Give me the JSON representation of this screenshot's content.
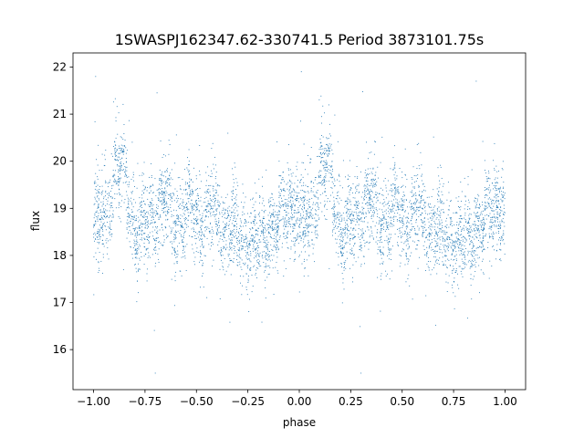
{
  "chart_data": {
    "type": "scatter",
    "title": "1SWASPJ162347.62-330741.5 Period 3873101.75s",
    "xlabel": "phase",
    "ylabel": "flux",
    "xlim": [
      -1.1,
      1.1
    ],
    "ylim": [
      15.15,
      22.3
    ],
    "xticks": [
      -1.0,
      -0.75,
      -0.5,
      -0.25,
      0.0,
      0.25,
      0.5,
      0.75,
      1.0
    ],
    "xtick_labels": [
      "−1.00",
      "−0.75",
      "−0.50",
      "−0.25",
      "0.00",
      "0.25",
      "0.50",
      "0.75",
      "1.00"
    ],
    "yticks": [
      16,
      17,
      18,
      19,
      20,
      21,
      22
    ],
    "ytick_labels": [
      "16",
      "17",
      "18",
      "19",
      "20",
      "21",
      "22"
    ],
    "grid": false,
    "legend": "none",
    "marker_color": "#1f77b4",
    "series": [
      {
        "phase_profile": [
          [
            0.0,
            18.7
          ],
          [
            0.04,
            18.6
          ],
          [
            0.08,
            19.3
          ],
          [
            0.11,
            19.9
          ],
          [
            0.15,
            19.6
          ],
          [
            0.19,
            18.9
          ],
          [
            0.23,
            18.4
          ],
          [
            0.27,
            18.6
          ],
          [
            0.31,
            19.1
          ],
          [
            0.35,
            19.0
          ],
          [
            0.39,
            18.7
          ],
          [
            0.43,
            18.8
          ],
          [
            0.47,
            18.9
          ],
          [
            0.5,
            18.9
          ],
          [
            0.54,
            18.7
          ],
          [
            0.58,
            18.9
          ],
          [
            0.62,
            18.6
          ],
          [
            0.66,
            18.7
          ],
          [
            0.7,
            18.3
          ],
          [
            0.74,
            18.4
          ],
          [
            0.78,
            18.2
          ],
          [
            0.82,
            18.3
          ],
          [
            0.86,
            18.7
          ],
          [
            0.9,
            18.6
          ],
          [
            0.94,
            19.0
          ],
          [
            0.97,
            19.3
          ],
          [
            1.0,
            18.7
          ]
        ],
        "spread": 0.45,
        "points_per_cycle": 2600,
        "sample_points": [
          [
            -1.0,
            18.6
          ],
          [
            -0.99,
            21.8
          ],
          [
            -0.86,
            20.2
          ],
          [
            -0.8,
            17.8
          ],
          [
            -0.56,
            19.0
          ],
          [
            -0.47,
            18.7
          ],
          [
            -0.3,
            18.0
          ],
          [
            -0.2,
            18.2
          ],
          [
            0.0,
            18.6
          ],
          [
            0.01,
            21.9
          ],
          [
            0.1,
            20.1
          ],
          [
            0.19,
            17.8
          ],
          [
            0.35,
            19.6
          ],
          [
            0.44,
            17.5
          ],
          [
            0.6,
            18.4
          ],
          [
            0.75,
            18.3
          ],
          [
            0.86,
            21.7
          ],
          [
            0.97,
            19.4
          ],
          [
            0.3,
            15.5
          ],
          [
            -0.7,
            15.5
          ]
        ]
      }
    ]
  }
}
